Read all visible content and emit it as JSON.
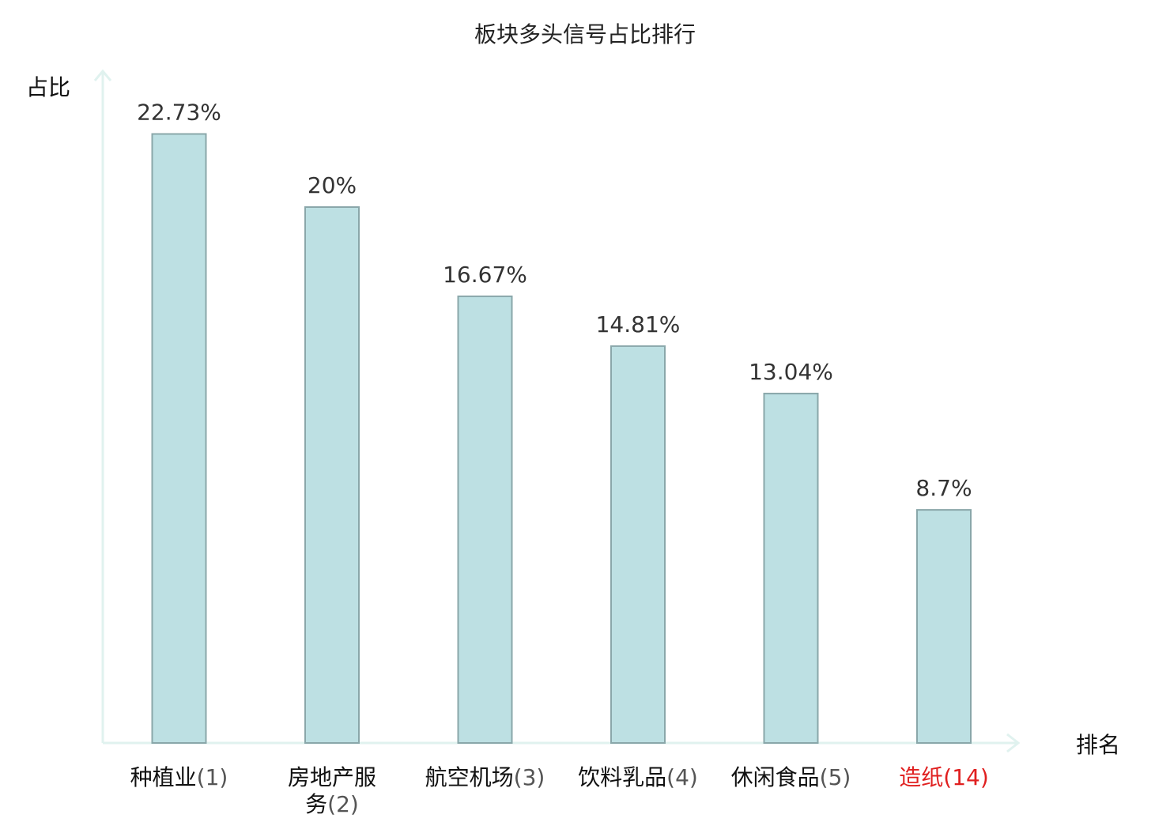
{
  "chart_data": {
    "type": "bar",
    "title": "板块多头信号占比排行",
    "xlabel": "排名",
    "ylabel": "占比",
    "categories": [
      {
        "name": "种植业",
        "rank": "(1)"
      },
      {
        "name": "房地产服务",
        "rank": "(2)"
      },
      {
        "name": "航空机场",
        "rank": "(3)"
      },
      {
        "name": "饮料乳品",
        "rank": "(4)"
      },
      {
        "name": "休闲食品",
        "rank": "(5)"
      },
      {
        "name": "造纸",
        "rank": "(14)"
      }
    ],
    "values": [
      22.73,
      20,
      16.67,
      14.81,
      13.04,
      8.7
    ],
    "value_labels": [
      "22.73%",
      "20%",
      "16.67%",
      "14.81%",
      "13.04%",
      "8.7%"
    ],
    "ylim": [
      0,
      25
    ],
    "grid": false,
    "highlight_index": 5,
    "colors": {
      "bar_fill": "#bde0e3",
      "bar_stroke": "#8aa7aa",
      "axis": "#e0f2ef",
      "highlight_text": "#e02020"
    }
  }
}
